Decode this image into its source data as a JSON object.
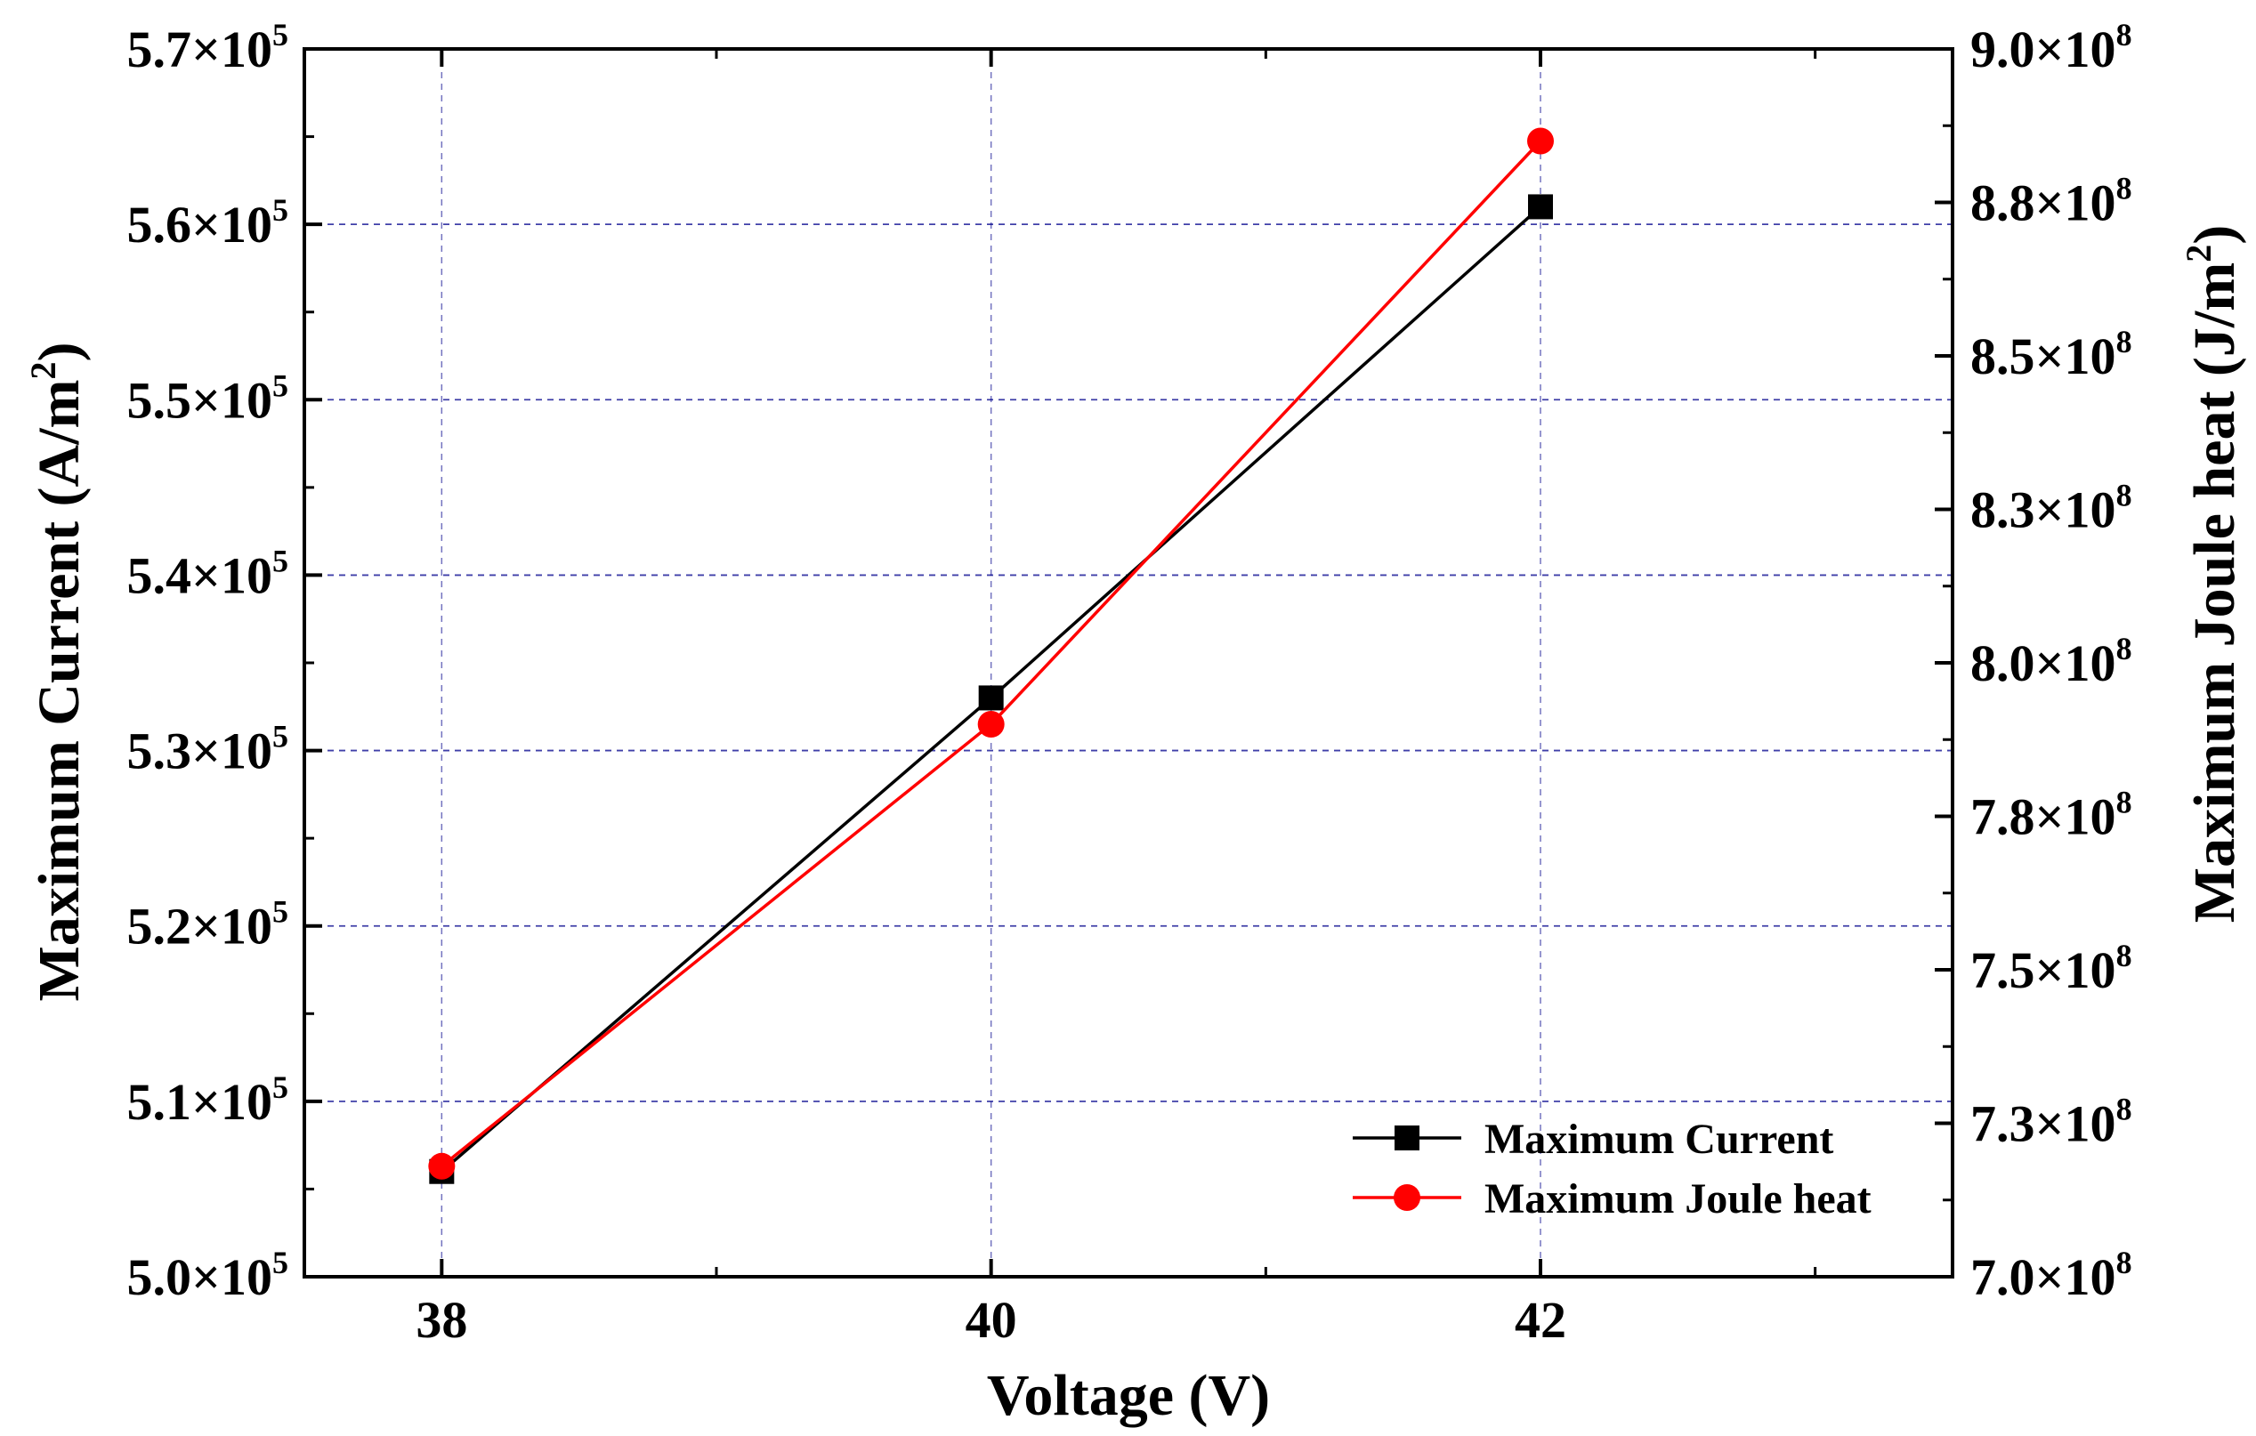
{
  "chart_data": {
    "type": "line",
    "title": "",
    "xlabel": "Voltage (V)",
    "ylabel_left": {
      "prefix": "Maximum Current (A/m",
      "sup": "2",
      "suffix": ")"
    },
    "ylabel_right": {
      "prefix": "Maximum Joule heat (J/m",
      "sup": "2",
      "suffix": ")"
    },
    "x": [
      38,
      40,
      42
    ],
    "xlim": [
      37.5,
      43.5
    ],
    "xticks": [
      "38",
      "40",
      "42"
    ],
    "ylim_left": [
      500000,
      570000
    ],
    "yticks_left": [
      {
        "mant": "5.0×10",
        "exp": "5"
      },
      {
        "mant": "5.1×10",
        "exp": "5"
      },
      {
        "mant": "5.2×10",
        "exp": "5"
      },
      {
        "mant": "5.3×10",
        "exp": "5"
      },
      {
        "mant": "5.4×10",
        "exp": "5"
      },
      {
        "mant": "5.5×10",
        "exp": "5"
      },
      {
        "mant": "5.6×10",
        "exp": "5"
      },
      {
        "mant": "5.7×10",
        "exp": "5"
      }
    ],
    "ylim_right": [
      700000000,
      900000000
    ],
    "yticks_right": [
      {
        "mant": "7.0×10",
        "exp": "8"
      },
      {
        "mant": "7.3×10",
        "exp": "8"
      },
      {
        "mant": "7.5×10",
        "exp": "8"
      },
      {
        "mant": "7.8×10",
        "exp": "8"
      },
      {
        "mant": "8.0×10",
        "exp": "8"
      },
      {
        "mant": "8.3×10",
        "exp": "8"
      },
      {
        "mant": "8.5×10",
        "exp": "8"
      },
      {
        "mant": "8.8×10",
        "exp": "8"
      },
      {
        "mant": "9.0×10",
        "exp": "8"
      }
    ],
    "grid": true,
    "legend_position": "bottom-right",
    "series": [
      {
        "name": "Maximum Current",
        "axis": "left",
        "color": "#000000",
        "marker": "square",
        "values": [
          506000,
          533000,
          561000
        ]
      },
      {
        "name": "Maximum Joule heat",
        "axis": "right",
        "color": "#ff0000",
        "marker": "circle",
        "values": [
          718000000,
          790000000,
          885000000
        ]
      }
    ]
  },
  "colors": {
    "grid": "#00008b",
    "axes": "#000000"
  }
}
